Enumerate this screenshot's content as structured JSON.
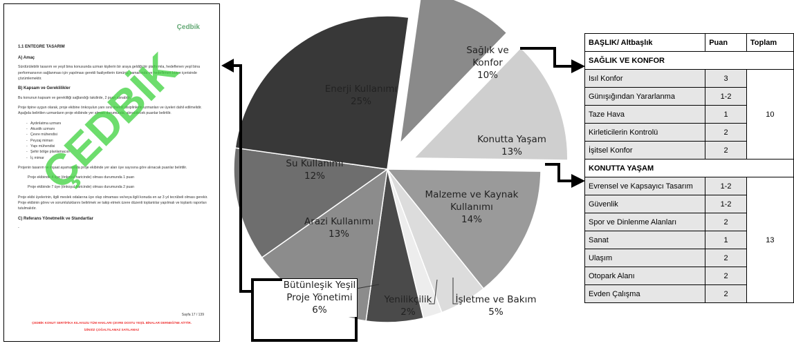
{
  "document": {
    "logo": "Çedbik",
    "heading": "1.1 ENTEGRE TASARIM",
    "section_a": "A) Amaç",
    "para_a": "Sürdürülebilir tasarım ve yeşil bina konusunda uzman kişilerin bir araya geldiği bir platformla, hedeflenen yeşil bina performansının sağlanması için yapılması gerekli faaliyetlerin tümünü, zamanında ve hedeflenen bütçe içerisinde çözümlemektir.",
    "section_b": "B) Kapsam ve Gereklilikler",
    "para_b1": "Bu konunun kapsam ve gerekliliği sağlandığı takdirde, 2 puan alınabilir.",
    "para_b2": "Proje tipine uygun olarak, proje ekibine önkoşulun yanı sıra önemli disiplinlerin uzmanları ve üyeleri dahil edilmelidir. Aşağıda belirtilen uzmanların proje ekibinde yer alması durumunda, alınabilecek puanlar belirtilir.",
    "list": [
      "Aydınlatma uzmanı",
      "Akustik uzmanı",
      "Çevre mühendisi",
      "Peyzaj mimarı",
      "Yapı mühendisi",
      "Şehir bölge planlamacısı",
      "İç mimar"
    ],
    "para_b3": "Projenin tasarım ve inşaat aşamasında proje ekibinde yer alan üye sayısına göre alınacak puanlar belirtilir.",
    "point_1": "Proje ekibinde 4 üye (önkoşul haricinde) olması durumunda 1 puan",
    "point_2": "Proje ekibinde 7 üye (önkoşul haricinde) olması durumunda 2 puan",
    "para_b4": "Proje ekibi üyelerinin, ilgili meslek odalarına üye olup olmaması ve/veya ilgili konuda en az 3 yıl tecrübeli olması gerekir. Proje ekibinin görev ve sorumluluklarını belirtmek ve takip etmek üzere düzenli toplantılar yapılmalı ve toplantı raporları tutulmalıdır.",
    "section_c": "C) Referans Yönetmelik ve Standartlar",
    "para_c": "-",
    "page": "Sayfa 17 / 139",
    "footer_1": "ÇEDBİK KONUT SERTİFİKA KILAVUZU TÜM HAKLARI ÇEVRE DOSTU YEŞİL BİNALAR DERNEĞİ'NE AİTTİR.",
    "footer_2": "İZİNSİZ ÇOĞALTILAMAZ SATILAMAZ",
    "watermark": "ÇEDBİK"
  },
  "chart_data": {
    "type": "pie",
    "categories": [
      "Sağlık ve Konfor",
      "Konutta Yaşam",
      "Malzeme ve Kaynak Kullanımı",
      "İşletme ve Bakım",
      "Yenilikçilik",
      "Bütünleşik Yeşil Proje Yönetimi",
      "Arazi Kullanımı",
      "Su Kullanımı",
      "Enerji Kullanımı"
    ],
    "values": [
      10,
      13,
      14,
      5,
      2,
      6,
      13,
      12,
      25
    ],
    "value_labels": [
      "10%",
      "13%",
      "14%",
      "5%",
      "2%",
      "6%",
      "13%",
      "12%",
      "25%"
    ],
    "colors": [
      "#8a8a8a",
      "#cfcfcf",
      "#9a9a9a",
      "#dcdcdc",
      "#ededed",
      "#4a4a4a",
      "#8c8c8c",
      "#6e6e6e",
      "#383838"
    ],
    "explode": [
      true,
      true,
      false,
      false,
      false,
      false,
      false,
      false,
      false
    ]
  },
  "table": {
    "header": [
      "BAŞLIK/ Altbaşlık",
      "Puan",
      "Toplam"
    ],
    "sections": [
      {
        "title": "SAĞLIK VE KONFOR",
        "total": "10",
        "rows": [
          [
            "Isıl Konfor",
            "3"
          ],
          [
            "Günışığından Yararlanma",
            "1-2"
          ],
          [
            "Taze Hava",
            "1"
          ],
          [
            "Kirleticilerin Kontrolü",
            "2"
          ],
          [
            "İşitsel Konfor",
            "2"
          ]
        ]
      },
      {
        "title": "KONUTTA YAŞAM",
        "total": "13",
        "rows": [
          [
            "Evrensel ve Kapsayıcı Tasarım",
            "1-2"
          ],
          [
            "Güvenlik",
            "1-2"
          ],
          [
            "Spor ve Dinlenme Alanları",
            "2"
          ],
          [
            "Sanat",
            "1"
          ],
          [
            "Ulaşım",
            "2"
          ],
          [
            "Otopark Alanı",
            "2"
          ],
          [
            "Evden Çalışma",
            "2"
          ]
        ]
      }
    ]
  }
}
